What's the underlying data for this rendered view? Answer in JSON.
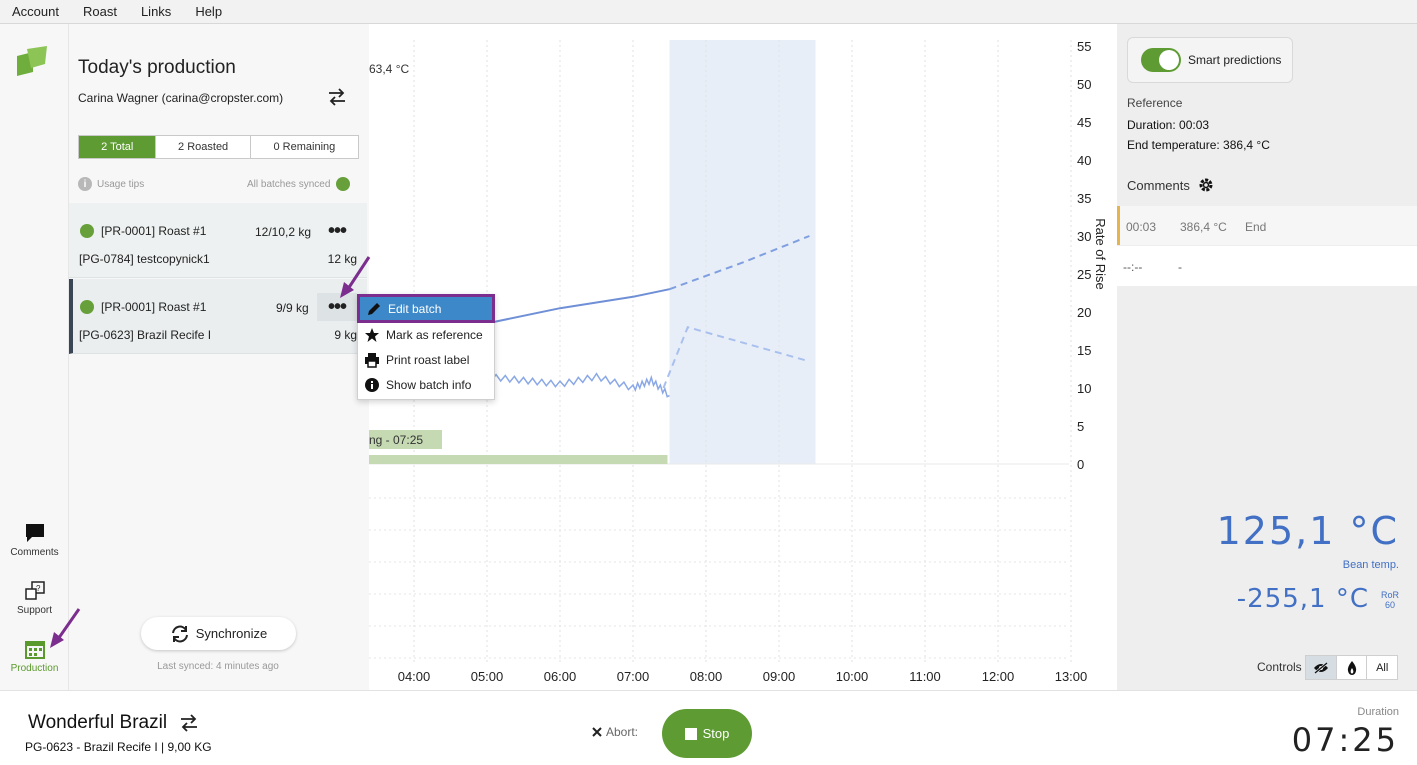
{
  "menu": [
    "Account",
    "Roast",
    "Links",
    "Help"
  ],
  "nav": {
    "comments": "Comments",
    "support": "Support",
    "production": "Production"
  },
  "sidebar": {
    "title": "Today's production",
    "user": "Carina Wagner (carina@cropster.com)",
    "tabs": [
      "2 Total",
      "2 Roasted",
      "0 Remaining"
    ],
    "usage_tips": "Usage tips",
    "sync_status": "All batches synced",
    "batches": [
      {
        "roast": "[PR-0001] Roast #1",
        "weight": "12/10,2 kg",
        "product": "[PG-0784] testcopynick1",
        "kg": "12 kg"
      },
      {
        "roast": "[PR-0001] Roast #1",
        "weight": "9/9 kg",
        "product": "[PG-0623] Brazil Recife I",
        "kg": "9 kg"
      }
    ],
    "sync_button": "Synchronize",
    "last_synced": "Last synced: 4 minutes ago"
  },
  "context_menu": [
    "Edit batch",
    "Mark as reference",
    "Print roast label",
    "Show batch info"
  ],
  "chart_data": {
    "type": "line",
    "ylabel": "Rate of Rise",
    "y_ticks": [
      55,
      50,
      45,
      40,
      35,
      30,
      25,
      20,
      15,
      10,
      5,
      0
    ],
    "x_ticks": [
      "04:00",
      "05:00",
      "06:00",
      "07:00",
      "08:00",
      "09:00",
      "10:00",
      "11:00",
      "12:00",
      "13:00"
    ],
    "temp_label": "63,4 °C",
    "phase_label": "ng - 07:25",
    "series": [
      {
        "x": [
          "04:00",
          "05:00",
          "06:00",
          "07:00",
          "07:30"
        ],
        "values": [
          16.5,
          18.5,
          20.5,
          22,
          23
        ]
      },
      {
        "x": [
          "07:30",
          "08:30",
          "09:25"
        ],
        "values": [
          23,
          26.5,
          30
        ]
      },
      {
        "x": [
          "04:00",
          "04:30",
          "05:00",
          "05:30",
          "06:00",
          "06:30",
          "07:00",
          "07:15",
          "07:30"
        ],
        "values": [
          13,
          12.5,
          11.5,
          11,
          10.5,
          11.5,
          10,
          11,
          9
        ]
      },
      {
        "x": [
          "07:25",
          "07:45",
          "09:25"
        ],
        "values": [
          10,
          18,
          13.5
        ]
      }
    ]
  },
  "right": {
    "smart_predictions": "Smart predictions",
    "reference": "Reference",
    "duration": "Duration: 00:03",
    "end_temp": "End temperature: 386,4 °C",
    "comments": "Comments",
    "comment_row1": {
      "time": "00:03",
      "temp": "386,4 °C",
      "event": "End"
    },
    "comment_row2": {
      "time": "--:--",
      "temp": "-"
    },
    "bean_temp": "125,1 °C",
    "bean_label": "Bean temp.",
    "ror_value": "-255,1 °C",
    "ror_label": "RoR",
    "ror_period": "60",
    "controls": "Controls",
    "controls_all": "All"
  },
  "footer": {
    "title": "Wonderful Brazil",
    "subtitle": "PG-0623 - Brazil Recife I | 9,00 KG",
    "abort": "Abort:",
    "stop": "Stop",
    "duration_label": "Duration",
    "duration": "07:25"
  },
  "colors": {
    "accent": "#5e9c33",
    "blue": "#4270c4",
    "highlight": "#7b2e8e"
  }
}
